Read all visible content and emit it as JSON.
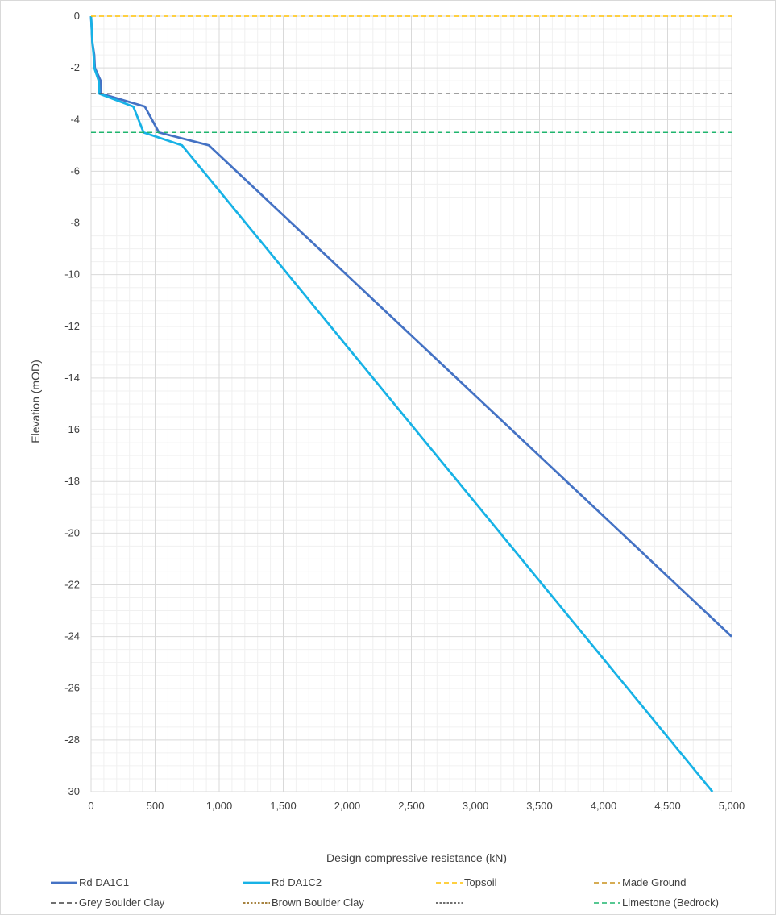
{
  "chart_data": {
    "type": "line",
    "title": "",
    "xlabel": "Design compressive resistance (kN)",
    "ylabel": "Elevation (mOD)",
    "xlim": [
      0,
      5000
    ],
    "ylim": [
      -30,
      0
    ],
    "x_ticks": [
      0,
      500,
      1000,
      1500,
      2000,
      2500,
      3000,
      3500,
      4000,
      4500,
      5000
    ],
    "x_tick_labels": [
      "0",
      "500",
      "1,000",
      "1,500",
      "2,000",
      "2,500",
      "3,000",
      "3,500",
      "4,000",
      "4,500",
      "5,000"
    ],
    "y_ticks": [
      0,
      -2,
      -4,
      -6,
      -8,
      -10,
      -12,
      -14,
      -16,
      -18,
      -20,
      -22,
      -24,
      -26,
      -28,
      -30
    ],
    "y_tick_labels": [
      "0",
      "-2",
      "-4",
      "-6",
      "-8",
      "-10",
      "-12",
      "-14",
      "-16",
      "-18",
      "-20",
      "-22",
      "-24",
      "-26",
      "-28",
      "-30"
    ],
    "grid": true,
    "minor_grid": true,
    "legend_position": "bottom",
    "series": [
      {
        "name": "Rd DA1C1",
        "color": "#4472c4",
        "style": "solid",
        "points": [
          [
            0,
            0
          ],
          [
            5,
            -0.5
          ],
          [
            10,
            -1
          ],
          [
            25,
            -1.5
          ],
          [
            30,
            -2
          ],
          [
            75,
            -2.5
          ],
          [
            80,
            -3
          ],
          [
            420,
            -3.5
          ],
          [
            530,
            -4.5
          ],
          [
            920,
            -5
          ],
          [
            5000,
            -24
          ]
        ]
      },
      {
        "name": "Rd DA1C2",
        "color": "#17b2e6",
        "style": "solid",
        "points": [
          [
            0,
            0
          ],
          [
            5,
            -0.5
          ],
          [
            10,
            -1
          ],
          [
            20,
            -1.5
          ],
          [
            25,
            -2
          ],
          [
            60,
            -2.5
          ],
          [
            65,
            -3
          ],
          [
            330,
            -3.5
          ],
          [
            410,
            -4.5
          ],
          [
            710,
            -5
          ],
          [
            4850,
            -30
          ]
        ]
      },
      {
        "name": "Topsoil",
        "color": "#ffc000",
        "style": "dashed",
        "points": [
          [
            0,
            0
          ],
          [
            5000,
            0
          ]
        ]
      },
      {
        "name": "Made Ground",
        "color": "#c9901a",
        "style": "dashed",
        "points": []
      },
      {
        "name": "Grey Boulder Clay",
        "color": "#404040",
        "style": "dashed",
        "points": [
          [
            0,
            -3
          ],
          [
            5000,
            -3
          ]
        ]
      },
      {
        "name": "Brown Boulder Clay",
        "color": "#8a5a00",
        "style": "dotted",
        "points": []
      },
      {
        "name": "",
        "color": "#404040",
        "style": "dotted",
        "points": []
      },
      {
        "name": "Limestone (Bedrock)",
        "color": "#1fb56e",
        "style": "dashed",
        "points": [
          [
            0,
            -4.5
          ],
          [
            5000,
            -4.5
          ]
        ]
      }
    ]
  }
}
